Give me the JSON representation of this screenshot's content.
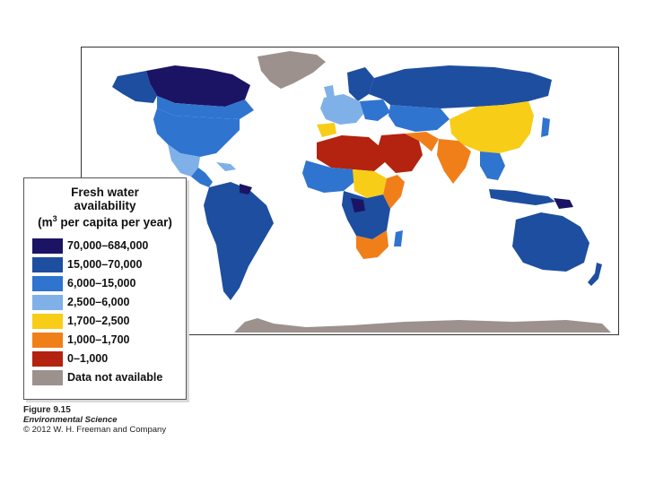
{
  "legend": {
    "title_line1": "Fresh water",
    "title_line2": "availability",
    "title_line3_pre": "(m",
    "title_line3_sup": "3",
    "title_line3_post": " per capita per year)",
    "items": [
      {
        "label": "70,000–684,000",
        "color": "#1b1464"
      },
      {
        "label": "15,000–70,000",
        "color": "#1d4ea0"
      },
      {
        "label": "6,000–15,000",
        "color": "#2f74cf"
      },
      {
        "label": "2,500–6,000",
        "color": "#7fb0e8"
      },
      {
        "label": "1,700–2,500",
        "color": "#f7cd17"
      },
      {
        "label": "1,000–1,700",
        "color": "#f07f1a"
      },
      {
        "label": "0–1,000",
        "color": "#b3230f"
      },
      {
        "label": "Data not available",
        "color": "#9d918e"
      }
    ]
  },
  "caption": {
    "figure": "Figure 9.15",
    "book": "Environmental Science",
    "copyright": "© 2012 W. H. Freeman and Company"
  }
}
